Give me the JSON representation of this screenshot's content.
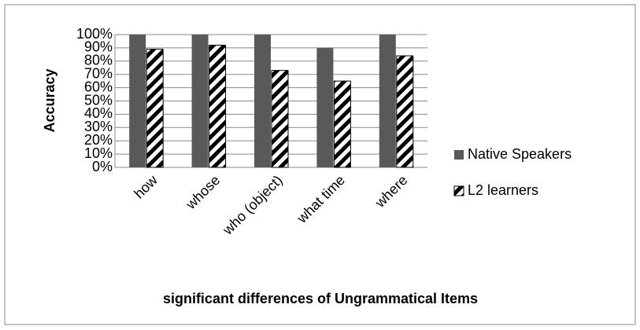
{
  "chart_data": {
    "type": "bar",
    "y_label": "Accuracy",
    "x_label": "significant differences of Ungrammatical Items",
    "categories": [
      "how",
      "whose",
      "who (object)",
      "what time",
      "where"
    ],
    "series": [
      {
        "name": "Native Speakers",
        "color": "#595959",
        "values": [
          100,
          100,
          100,
          90,
          100
        ]
      },
      {
        "name": "L2 learners",
        "color": "#000000",
        "fill": "hatch",
        "values": [
          89,
          92,
          73,
          65,
          84
        ]
      }
    ],
    "ylim": [
      0,
      100
    ],
    "yticks": [
      {
        "value": 0,
        "label": "0%"
      },
      {
        "value": 10,
        "label": "10%"
      },
      {
        "value": 20,
        "label": "20%"
      },
      {
        "value": 30,
        "label": "30%"
      },
      {
        "value": 40,
        "label": "40%"
      },
      {
        "value": 50,
        "label": "50%"
      },
      {
        "value": 60,
        "label": "60%"
      },
      {
        "value": 70,
        "label": "70%"
      },
      {
        "value": 80,
        "label": "80%"
      },
      {
        "value": 90,
        "label": "90%"
      },
      {
        "value": 100,
        "label": "100%"
      }
    ],
    "grid": true,
    "legend": "right"
  }
}
